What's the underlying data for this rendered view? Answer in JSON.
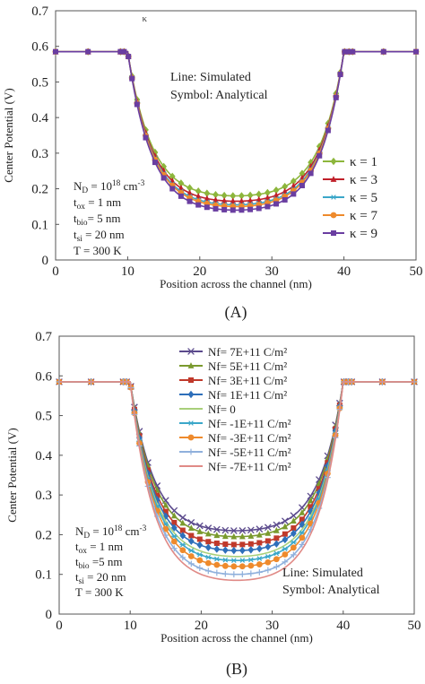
{
  "chart_data": [
    {
      "panel_label": "(A)",
      "type": "line",
      "xlabel": "Position across the channel (nm)",
      "ylabel": "Center Potential (V)",
      "xlim": [
        0,
        50
      ],
      "ylim": [
        0,
        0.7
      ],
      "xticks": [
        0,
        10,
        20,
        30,
        40,
        50
      ],
      "yticks": [
        0,
        0.1,
        0.2,
        0.3,
        0.4,
        0.5,
        0.6,
        0.7
      ],
      "grid": false,
      "legend_position": "right",
      "stray_mark": "κ",
      "annotation": [
        "Line: Simulated",
        "Symbol: Analytical"
      ],
      "params": [
        {
          "label": "N",
          "sub": "D",
          "rest": " = 10",
          "sup": "18",
          "tail": " cm",
          "sup2": "-3"
        },
        {
          "label": "t",
          "sub": "ox",
          "rest": " = 1 nm",
          "sup": "",
          "tail": "",
          "sup2": ""
        },
        {
          "label": "t",
          "sub": "bio",
          "rest": "= 5 nm",
          "sup": "",
          "tail": "",
          "sup2": ""
        },
        {
          "label": "t",
          "sub": "si",
          "rest": " =  20 nm",
          "sup": "",
          "tail": "",
          "sup2": ""
        },
        {
          "label": "T = 300 K",
          "sub": "",
          "rest": "",
          "sup": "",
          "tail": "",
          "sup2": ""
        }
      ],
      "plateau": 0.585,
      "channel": [
        10,
        40
      ],
      "series": [
        {
          "name": "κ = 1",
          "min": 0.18,
          "color": "#8db63c",
          "marker": "diamond"
        },
        {
          "name": "κ = 3",
          "min": 0.165,
          "color": "#c0202a",
          "marker": "triangle"
        },
        {
          "name": "κ = 5",
          "min": 0.155,
          "color": "#3ba7c9",
          "marker": "asterisk"
        },
        {
          "name": "κ = 7",
          "min": 0.15,
          "color": "#ee8a2c",
          "marker": "circle"
        },
        {
          "name": "κ = 9",
          "min": 0.14,
          "color": "#6a3ea1",
          "marker": "square"
        }
      ]
    },
    {
      "panel_label": "(B)",
      "type": "line",
      "xlabel": "Position across the channel (nm)",
      "ylabel": "Center Potential (V)",
      "xlim": [
        0,
        50
      ],
      "ylim": [
        0,
        0.7
      ],
      "xticks": [
        0,
        10,
        20,
        30,
        40,
        50
      ],
      "yticks": [
        0,
        0.1,
        0.2,
        0.3,
        0.4,
        0.5,
        0.6,
        0.7
      ],
      "grid": false,
      "legend_position": "top-center",
      "annotation": [
        "Line: Simulated",
        "Symbol: Analytical"
      ],
      "params": [
        {
          "label": "N",
          "sub": "D",
          "rest": " = 10",
          "sup": "18",
          "tail": " cm",
          "sup2": "-3"
        },
        {
          "label": "t",
          "sub": "ox",
          "rest": " = 1 nm",
          "sup": "",
          "tail": "",
          "sup2": ""
        },
        {
          "label": "t",
          "sub": "bio",
          "rest": " =5 nm",
          "sup": "",
          "tail": "",
          "sup2": ""
        },
        {
          "label": "t",
          "sub": "si",
          "rest": " =  20 nm",
          "sup": "",
          "tail": "",
          "sup2": ""
        },
        {
          "label": "T = 300 K",
          "sub": "",
          "rest": "",
          "sup": "",
          "tail": "",
          "sup2": ""
        }
      ],
      "plateau": 0.585,
      "channel": [
        10,
        40
      ],
      "series": [
        {
          "name": "Nf= 7E+11 C/m²",
          "min": 0.21,
          "color": "#5b4a8c",
          "marker": "x"
        },
        {
          "name": "Nf= 5E+11 C/m²",
          "min": 0.195,
          "color": "#7a9a2e",
          "marker": "triangle"
        },
        {
          "name": "Nf= 3E+11 C/m²",
          "min": 0.175,
          "color": "#c0392b",
          "marker": "square"
        },
        {
          "name": "Nf= 1E+11 C/m²",
          "min": 0.16,
          "color": "#2e6fba",
          "marker": "diamond"
        },
        {
          "name": "Nf= 0",
          "min": 0.145,
          "color": "#a8cf7a",
          "marker": "none"
        },
        {
          "name": "Nf= -1E+11 C/m²",
          "min": 0.135,
          "color": "#3ba7c9",
          "marker": "asterisk"
        },
        {
          "name": "Nf= -3E+11 C/m²",
          "min": 0.12,
          "color": "#ee8a2c",
          "marker": "circle"
        },
        {
          "name": "Nf= -5E+11 C/m²",
          "min": 0.1,
          "color": "#8fb0dc",
          "marker": "plus"
        },
        {
          "name": "Nf= -7E+11 C/m²",
          "min": 0.085,
          "color": "#e08a86",
          "marker": "none"
        }
      ]
    }
  ]
}
